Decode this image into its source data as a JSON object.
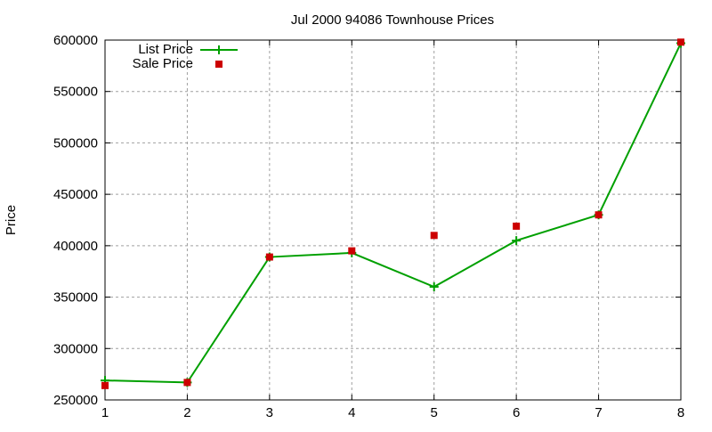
{
  "chart_data": {
    "type": "line",
    "title": "Jul 2000 94086 Townhouse Prices",
    "xlabel": "",
    "ylabel": "Price",
    "x": [
      1,
      2,
      3,
      4,
      5,
      6,
      7,
      8
    ],
    "xlim": [
      1,
      8
    ],
    "ylim": [
      250000,
      600000
    ],
    "yticks": [
      250000,
      300000,
      350000,
      400000,
      450000,
      500000,
      550000,
      600000
    ],
    "xticks": [
      1,
      2,
      3,
      4,
      5,
      6,
      7,
      8
    ],
    "grid": true,
    "legend_position": "top-left",
    "series": [
      {
        "name": "List Price",
        "style": "linespoints",
        "color": "#00a000",
        "marker": "plus",
        "values": [
          269000,
          267000,
          389000,
          393000,
          360000,
          405000,
          430000,
          597000
        ]
      },
      {
        "name": "Sale Price",
        "style": "points",
        "color": "#cc0000",
        "marker": "square",
        "values": [
          264000,
          267000,
          389000,
          395000,
          410000,
          419000,
          430000,
          598000
        ]
      }
    ]
  }
}
